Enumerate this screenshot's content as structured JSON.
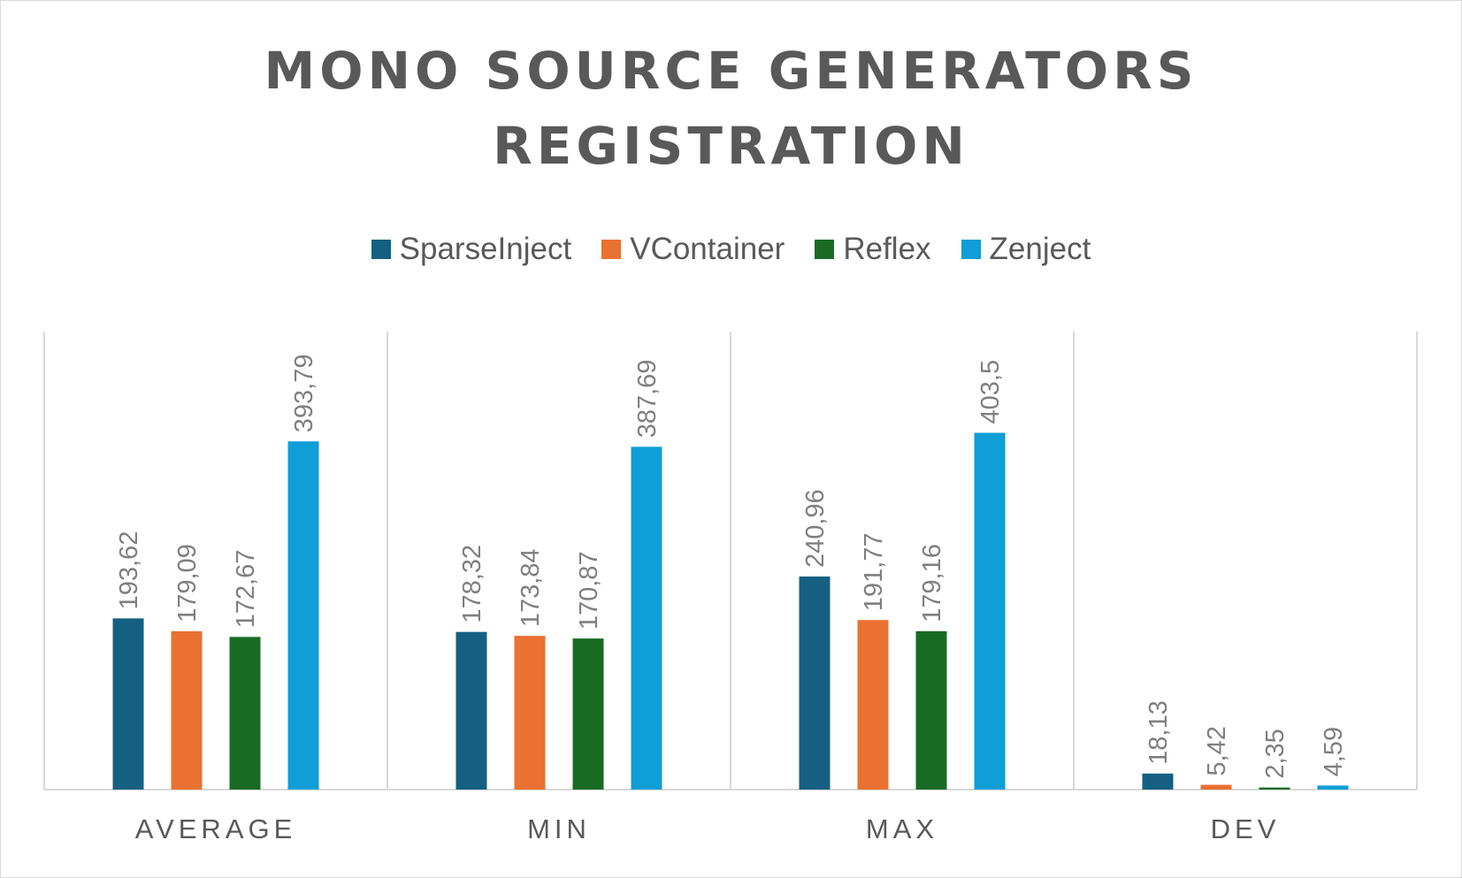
{
  "chart_data": {
    "type": "bar",
    "title": "MONO SOURCE GENERATORS REGISTRATION",
    "title_lines": [
      "MONO SOURCE GENERATORS",
      "REGISTRATION"
    ],
    "categories": [
      "AVERAGE",
      "MIN",
      "MAX",
      "DEV"
    ],
    "series": [
      {
        "name": "SparseInject",
        "color": "#156082",
        "values": [
          193.62,
          178.32,
          240.96,
          18.13
        ],
        "labels": [
          "193,62",
          "178,32",
          "240,96",
          "18,13"
        ]
      },
      {
        "name": "VContainer",
        "color": "#E97132",
        "values": [
          179.09,
          173.84,
          191.77,
          5.42
        ],
        "labels": [
          "179,09",
          "173,84",
          "191,77",
          "5,42"
        ]
      },
      {
        "name": "Reflex",
        "color": "#196B24",
        "values": [
          172.67,
          170.87,
          179.16,
          2.35
        ],
        "labels": [
          "172,67",
          "170,87",
          "179,16",
          "2,35"
        ]
      },
      {
        "name": "Zenject",
        "color": "#0F9ED5",
        "values": [
          393.79,
          387.69,
          403.5,
          4.59
        ],
        "labels": [
          "393,79",
          "387,69",
          "403,5",
          "4,59"
        ]
      }
    ],
    "ylim": [
      0,
      450
    ],
    "grid": "vertical category separators",
    "legend": "top-center",
    "data_labels": "rotated, above bars"
  }
}
